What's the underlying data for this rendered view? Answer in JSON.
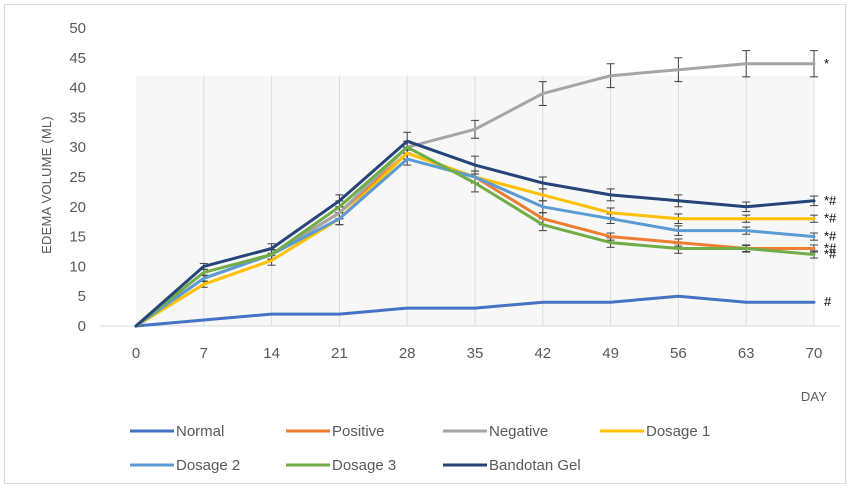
{
  "chart_data": {
    "type": "line",
    "title": "",
    "xlabel": "DAY",
    "ylabel": "EDEMA VOLUME (ML)",
    "ylim": [
      0,
      50
    ],
    "yticks": [
      0,
      5,
      10,
      15,
      20,
      25,
      30,
      35,
      40,
      45,
      50
    ],
    "x": [
      0,
      7,
      14,
      21,
      28,
      35,
      42,
      49,
      56,
      63,
      70
    ],
    "grid": "vertical",
    "legend_position": "bottom",
    "series": [
      {
        "name": "Normal",
        "color": "#4472C4",
        "values": [
          0,
          1,
          2,
          2,
          3,
          3,
          4,
          4,
          5,
          4,
          4
        ],
        "errors": [
          0,
          0,
          0,
          0,
          0,
          0,
          0,
          0,
          0,
          0,
          0
        ],
        "annotation": "#"
      },
      {
        "name": "Positive",
        "color": "#ED7D31",
        "values": [
          0,
          8,
          12,
          19,
          29,
          25,
          18,
          15,
          14,
          13,
          13
        ],
        "errors": [
          0,
          0.5,
          0.8,
          1,
          1,
          1,
          1,
          0.6,
          0.6,
          0.5,
          0.6
        ],
        "annotation": "*#"
      },
      {
        "name": "Negative",
        "color": "#A5A5A5",
        "values": [
          0,
          8,
          12,
          19,
          30,
          33,
          39,
          42,
          43,
          44,
          44
        ],
        "errors": [
          0,
          0.5,
          0.8,
          1,
          1,
          1.5,
          2,
          2,
          2,
          2.2,
          2.2
        ],
        "annotation": "*"
      },
      {
        "name": "Dosage 1",
        "color": "#FFC000",
        "values": [
          0,
          7,
          11,
          18,
          29,
          25,
          22,
          19,
          18,
          18,
          18
        ],
        "errors": [
          0,
          0.5,
          0.8,
          1,
          1,
          1,
          1,
          0.8,
          0.8,
          0.6,
          0.6
        ],
        "annotation": "*#"
      },
      {
        "name": "Dosage 2",
        "color": "#5B9BD5",
        "values": [
          0,
          8,
          12,
          18,
          28,
          25,
          20,
          18,
          16,
          16,
          15
        ],
        "errors": [
          0,
          0.5,
          0.8,
          1,
          1,
          1,
          1,
          0.8,
          0.8,
          0.6,
          0.6
        ],
        "annotation": "*#"
      },
      {
        "name": "Dosage 3",
        "color": "#70AD47",
        "values": [
          0,
          9,
          12,
          20,
          30,
          24,
          17,
          14,
          13,
          13,
          12
        ],
        "errors": [
          0,
          0.5,
          0.8,
          1,
          1,
          1.5,
          1,
          0.8,
          0.8,
          0.6,
          0.6
        ],
        "annotation": "*#"
      },
      {
        "name": "Bandotan Gel",
        "color": "#264478",
        "values": [
          0,
          10,
          13,
          21,
          31,
          27,
          24,
          22,
          21,
          20,
          21
        ],
        "errors": [
          0,
          0.5,
          0.8,
          1,
          1.5,
          1.5,
          1,
          1,
          1,
          0.8,
          0.8
        ],
        "annotation": "*#"
      }
    ]
  }
}
